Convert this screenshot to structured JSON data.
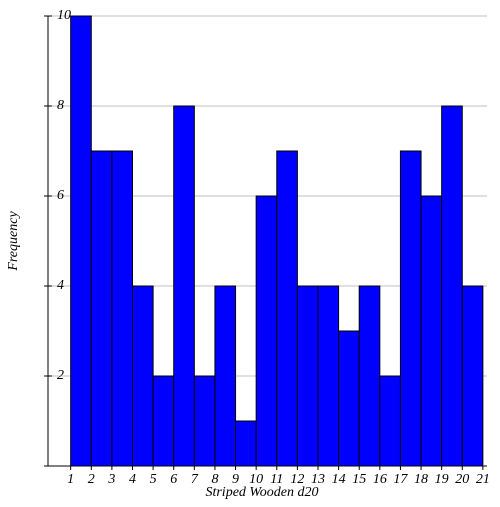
{
  "chart_data": {
    "type": "histogram",
    "xlabel": "Striped Wooden d20",
    "ylabel": "Frequency",
    "bins": [
      1,
      2,
      3,
      4,
      5,
      6,
      7,
      8,
      9,
      10,
      11,
      12,
      13,
      14,
      15,
      16,
      17,
      18,
      19,
      20,
      21
    ],
    "values": [
      10,
      7,
      7,
      4,
      2,
      8,
      2,
      4,
      1,
      6,
      7,
      4,
      4,
      3,
      4,
      2,
      7,
      6,
      8,
      4
    ],
    "color": "#0000ff",
    "edgecolor": "#000000",
    "xlim": [
      -0.1,
      21.2
    ],
    "ylim": [
      0,
      10
    ],
    "xticks": [
      1,
      2,
      3,
      4,
      5,
      6,
      7,
      8,
      9,
      10,
      11,
      12,
      13,
      14,
      15,
      16,
      17,
      18,
      19,
      20,
      21
    ],
    "yticks": [
      2,
      4,
      6,
      8,
      10
    ],
    "grid": true
  }
}
